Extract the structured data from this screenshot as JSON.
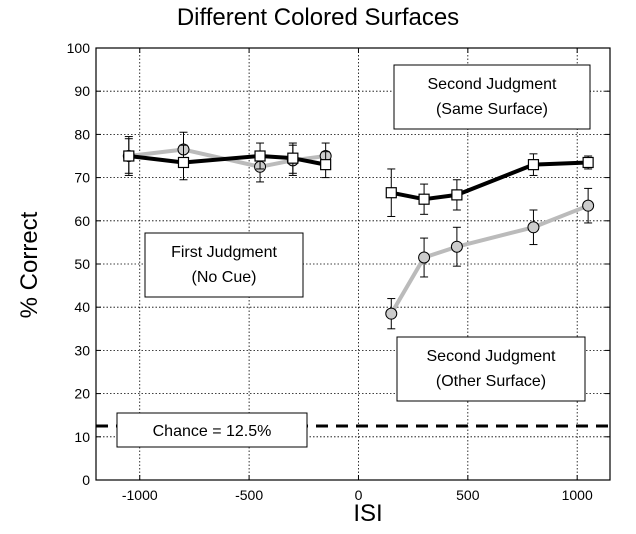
{
  "chart_data": {
    "type": "line",
    "title": "Different Colored Surfaces",
    "xlabel": "ISI",
    "ylabel": "% Correct",
    "xlim": [
      -1200,
      1150
    ],
    "ylim": [
      0,
      100
    ],
    "x_ticks": [
      -1000,
      -500,
      0,
      500,
      1000
    ],
    "y_ticks": [
      0,
      10,
      20,
      30,
      40,
      50,
      60,
      70,
      80,
      90,
      100
    ],
    "grid": true,
    "series": [
      {
        "group": "first-judgment-gray",
        "color": "#bbbbbb",
        "marker": "circle",
        "x": [
          -1050,
          -800,
          -450,
          -300,
          -150
        ],
        "y": [
          75.0,
          76.5,
          72.5,
          74.0,
          75.0
        ],
        "err": [
          4.0,
          4.0,
          3.5,
          3.5,
          3.0
        ]
      },
      {
        "group": "first-judgment-black",
        "color": "#000000",
        "marker": "square",
        "x": [
          -1050,
          -800,
          -450,
          -300,
          -150
        ],
        "y": [
          75.0,
          73.5,
          75.0,
          74.5,
          73.0
        ],
        "err": [
          4.5,
          4.0,
          3.0,
          3.5,
          3.0
        ]
      },
      {
        "group": "second-judgment-same-surface",
        "color": "#000000",
        "marker": "square",
        "x": [
          150,
          300,
          450,
          800,
          1050
        ],
        "y": [
          66.5,
          65.0,
          66.0,
          73.0,
          73.5
        ],
        "err": [
          5.5,
          3.5,
          3.5,
          2.5,
          1.5
        ]
      },
      {
        "group": "second-judgment-other-surface",
        "color": "#bbbbbb",
        "marker": "circle",
        "x": [
          150,
          300,
          450,
          800,
          1050
        ],
        "y": [
          38.5,
          51.5,
          54.0,
          58.5,
          63.5
        ],
        "err": [
          3.5,
          4.5,
          4.5,
          4.0,
          4.0
        ]
      }
    ],
    "chance_line": {
      "y": 12.5,
      "label": "Chance = 12.5%"
    },
    "annotations": [
      {
        "id": "annotation-second-same",
        "lines": [
          "Second Judgment",
          "(Same Surface)"
        ]
      },
      {
        "id": "annotation-first",
        "lines": [
          "First Judgment",
          "(No Cue)"
        ]
      },
      {
        "id": "annotation-second-other",
        "lines": [
          "Second Judgment",
          "(Other Surface)"
        ]
      }
    ]
  }
}
